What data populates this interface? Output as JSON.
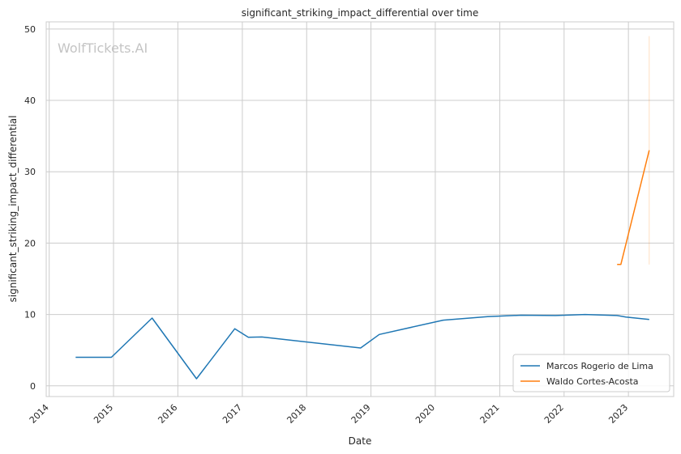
{
  "chart_data": {
    "type": "line",
    "title": "significant_striking_impact_differential over time",
    "xlabel": "Date",
    "ylabel": "significant_striking_impact_differential",
    "watermark": "WolfTickets.AI",
    "x_tick_labels": [
      "2014",
      "2015",
      "2016",
      "2017",
      "2018",
      "2019",
      "2020",
      "2021",
      "2022",
      "2023"
    ],
    "y_tick_labels": [
      "0",
      "10",
      "20",
      "30",
      "40",
      "50"
    ],
    "xlim": [
      "2013-12-15",
      "2023-09-15"
    ],
    "ylim": [
      -1.5,
      51
    ],
    "grid": true,
    "legend_position": "lower-right",
    "series": [
      {
        "name": "Marcos Rogerio de Lima",
        "color": "#1f77b4",
        "points": [
          [
            "2014-05-31",
            4.0
          ],
          [
            "2014-12-20",
            4.0
          ],
          [
            "2015-08-08",
            9.5
          ],
          [
            "2016-04-16",
            1.0
          ],
          [
            "2016-11-19",
            8.0
          ],
          [
            "2017-02-04",
            6.8
          ],
          [
            "2017-04-22",
            6.85
          ],
          [
            "2018-11-03",
            5.3
          ],
          [
            "2019-02-17",
            7.2
          ],
          [
            "2020-02-15",
            9.2
          ],
          [
            "2020-10-24",
            9.7
          ],
          [
            "2021-05-01",
            9.9
          ],
          [
            "2021-11-13",
            9.85
          ],
          [
            "2022-04-30",
            10.0
          ],
          [
            "2022-10-29",
            9.85
          ],
          [
            "2022-12-17",
            9.65
          ],
          [
            "2023-04-29",
            9.3
          ]
        ]
      },
      {
        "name": "Waldo Cortes-Acosta",
        "color": "#ff7f0e",
        "points": [
          [
            "2022-10-29",
            17.0
          ],
          [
            "2022-11-19",
            17.0
          ],
          [
            "2023-04-29",
            33.0
          ]
        ],
        "band": [
          [
            "2023-04-29",
            17.0,
            49.0
          ]
        ]
      }
    ]
  }
}
